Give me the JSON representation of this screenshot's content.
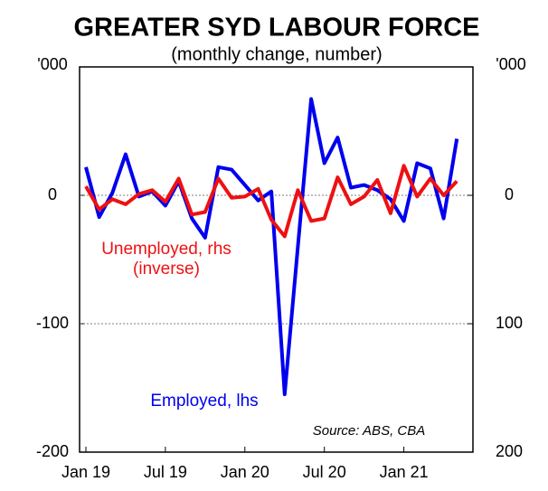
{
  "chart_data": {
    "type": "line",
    "title": "GREATER SYD LABOUR FORCE",
    "subtitle": "(monthly change, number)",
    "y_label": "'000",
    "y2_label": "'000",
    "source": "Source: ABS, CBA",
    "annotation": "(inverse)",
    "categories": [
      "Jan 19",
      null,
      null,
      null,
      null,
      null,
      "Jul 19",
      null,
      null,
      null,
      null,
      null,
      "Jan 20",
      null,
      null,
      null,
      null,
      null,
      "Jul 20",
      null,
      null,
      null,
      null,
      null,
      "Jan 21",
      null,
      null,
      null,
      null
    ],
    "series": [
      {
        "name": "Employed, lhs",
        "color": "#0000ee",
        "axis": "y",
        "values": [
          22,
          -17,
          2,
          32,
          -1,
          3,
          -8,
          11,
          -18,
          -33,
          22,
          20,
          8,
          -4,
          3,
          -155,
          -40,
          75,
          25,
          45,
          6,
          8,
          4,
          -3,
          -20,
          25,
          21,
          -18,
          44
        ]
      },
      {
        "name": "Unemployed, rhs",
        "color": "#ee1111",
        "axis": "y2",
        "values": [
          -7,
          11,
          3,
          7,
          -1,
          -4,
          5,
          -13,
          15,
          13,
          -13,
          2,
          1,
          -5,
          19,
          32,
          -4,
          20,
          18,
          -14,
          7,
          1,
          -12,
          14,
          -23,
          1,
          -13,
          0,
          -11
        ]
      }
    ],
    "ylim": [
      -200,
      100
    ],
    "yticks": [
      -200,
      -100,
      0
    ],
    "y2lim": [
      -100,
      200
    ],
    "y2ticks": [
      0,
      100,
      200
    ],
    "y2_inverted": true,
    "grid": true
  }
}
